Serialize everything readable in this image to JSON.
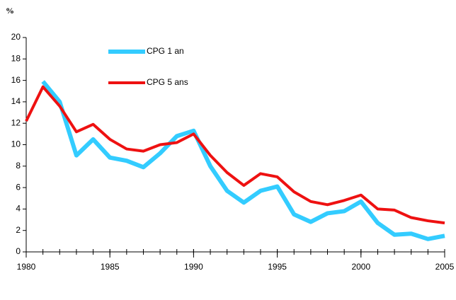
{
  "chart_data": {
    "type": "line",
    "y_label": "%",
    "x": [
      1980,
      1981,
      1982,
      1983,
      1984,
      1985,
      1986,
      1987,
      1988,
      1989,
      1990,
      1991,
      1992,
      1993,
      1994,
      1995,
      1996,
      1997,
      1998,
      1999,
      2000,
      2001,
      2002,
      2003,
      2004,
      2005
    ],
    "series": [
      {
        "name": "CPG 1 an",
        "color": "#33ccff",
        "values": [
          null,
          15.9,
          14.0,
          9.0,
          10.5,
          8.8,
          8.5,
          7.9,
          9.2,
          10.8,
          11.3,
          8.0,
          5.7,
          4.6,
          5.7,
          6.1,
          3.5,
          2.8,
          3.6,
          3.8,
          4.7,
          2.7,
          1.6,
          1.7,
          1.2,
          1.5
        ]
      },
      {
        "name": "CPG 5 ans",
        "color": "#ee1111",
        "values": [
          12.2,
          15.4,
          13.6,
          11.2,
          11.9,
          10.5,
          9.6,
          9.4,
          10.0,
          10.2,
          11.0,
          9.0,
          7.4,
          6.2,
          7.3,
          7.0,
          5.6,
          4.7,
          4.4,
          4.8,
          5.3,
          4.0,
          3.9,
          3.2,
          2.9,
          2.7
        ]
      }
    ],
    "xlim": [
      1980,
      2005
    ],
    "xticks": [
      1980,
      1985,
      1990,
      1995,
      2000,
      2005
    ],
    "ylim": [
      0,
      20
    ],
    "yticks": [
      0,
      2,
      4,
      6,
      8,
      10,
      12,
      14,
      16,
      18,
      20
    ],
    "grid": false
  }
}
